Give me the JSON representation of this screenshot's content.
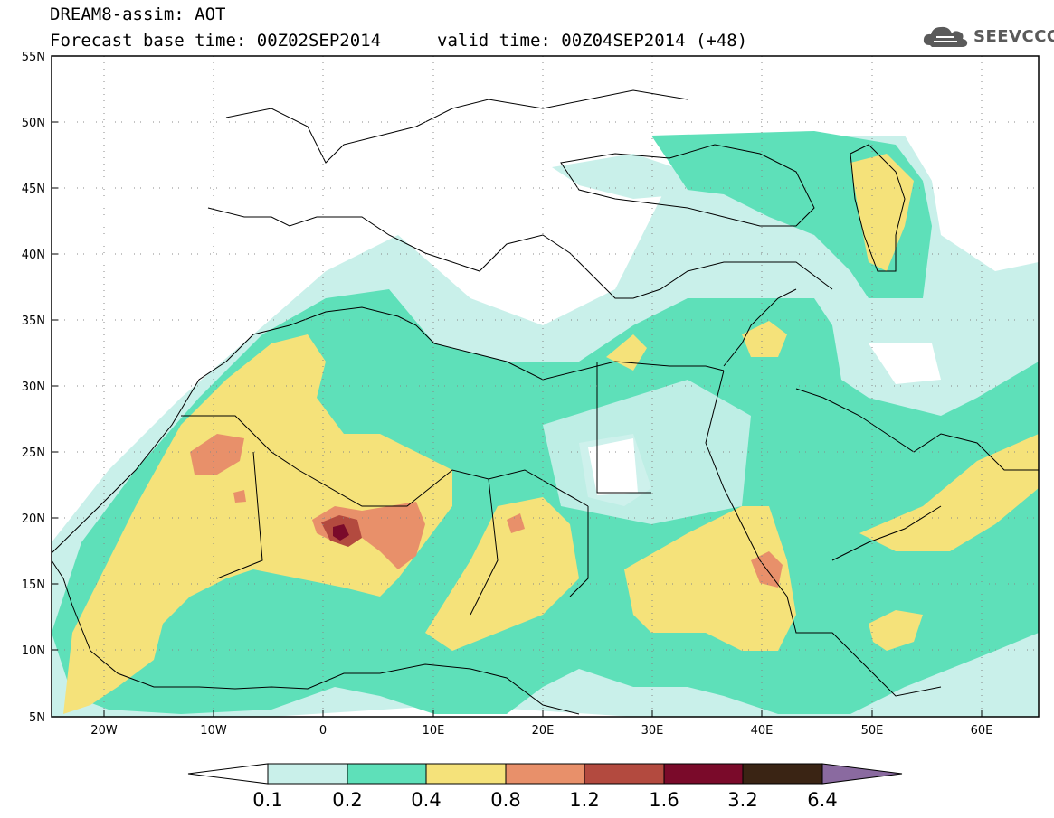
{
  "header": {
    "title": "DREAM8-assim: AOT",
    "forecast_base": "Forecast base time: 00Z02SEP2014",
    "valid_time": "valid time: 00Z04SEP2014 (+48)"
  },
  "logo": {
    "icon": "cloud-icon",
    "text": "SEEVCCC",
    "color": "#5a5a5a"
  },
  "map": {
    "lat_labels": [
      "55N",
      "50N",
      "45N",
      "40N",
      "35N",
      "30N",
      "25N",
      "20N",
      "15N",
      "10N",
      "5N"
    ],
    "lon_labels": [
      "20W",
      "10W",
      "0",
      "10E",
      "20E",
      "30E",
      "40E",
      "50E",
      "60E"
    ],
    "extent": {
      "lon_min": -25,
      "lon_max": 65,
      "lat_min": 5,
      "lat_max": 55
    },
    "grid": "dotted"
  },
  "colorbar": {
    "levels": [
      "0.1",
      "0.2",
      "0.4",
      "0.8",
      "1.2",
      "1.6",
      "3.2",
      "6.4"
    ],
    "colors": [
      "#c9f0ea",
      "#5ee0b9",
      "#f5e27a",
      "#e8906a",
      "#b34a3f",
      "#7a0a2a",
      "#3a2414",
      "#8a6aa0"
    ],
    "lower_extend_color": "#ffffff",
    "upper_extend_color": "#8a6aa0"
  }
}
